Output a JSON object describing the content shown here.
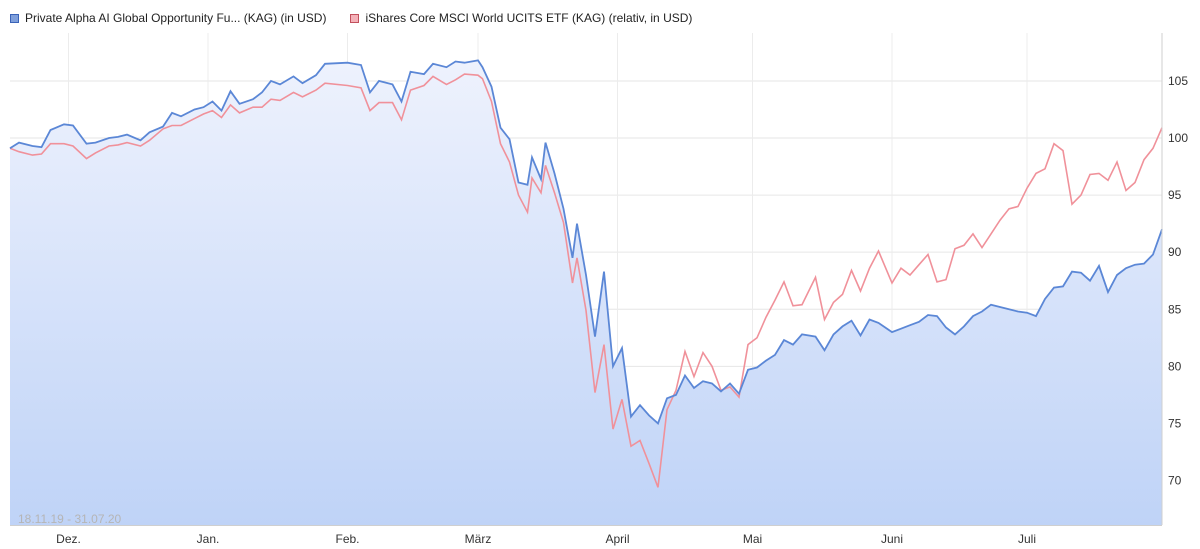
{
  "legend": {
    "series1": "Private Alpha AI Global Opportunity Fu... (KAG) (in USD)",
    "series2": "iShares Core MSCI World UCITS ETF (KAG) (relativ, in USD)"
  },
  "date_range": "18.11.19 - 31.07.20",
  "colors": {
    "series1": "#5b87d6",
    "series2": "#f0919a",
    "fill_top": "#eef2fd",
    "fill_bottom": "#bfd3f7"
  },
  "chart_data": {
    "type": "line",
    "x_start": "2019-11-18",
    "x_end": "2020-07-31",
    "x_ticks": [
      {
        "label": "Dez.",
        "date": "2019-12-01"
      },
      {
        "label": "Jan.",
        "date": "2020-01-01"
      },
      {
        "label": "Feb.",
        "date": "2020-02-01"
      },
      {
        "label": "März",
        "date": "2020-03-01"
      },
      {
        "label": "April",
        "date": "2020-04-01"
      },
      {
        "label": "Mai",
        "date": "2020-05-01"
      },
      {
        "label": "Juni",
        "date": "2020-06-01"
      },
      {
        "label": "Juli",
        "date": "2020-07-01"
      }
    ],
    "y_ticks": [
      70,
      75,
      80,
      85,
      90,
      95,
      100,
      105
    ],
    "ylim": [
      66.1,
      109.2
    ],
    "grid": true,
    "legend_position": "top-left",
    "series": [
      {
        "name": "Private Alpha AI Global Opportunity Fu... (KAG) (in USD)",
        "filled": true,
        "points": [
          [
            "2019-11-18",
            99.1
          ],
          [
            "2019-11-20",
            99.6
          ],
          [
            "2019-11-23",
            99.3
          ],
          [
            "2019-11-25",
            99.2
          ],
          [
            "2019-11-27",
            100.7
          ],
          [
            "2019-11-30",
            101.2
          ],
          [
            "2019-12-02",
            101.1
          ],
          [
            "2019-12-05",
            99.5
          ],
          [
            "2019-12-07",
            99.6
          ],
          [
            "2019-12-10",
            100.0
          ],
          [
            "2019-12-12",
            100.1
          ],
          [
            "2019-12-14",
            100.3
          ],
          [
            "2019-12-17",
            99.8
          ],
          [
            "2019-12-19",
            100.5
          ],
          [
            "2019-12-22",
            101.0
          ],
          [
            "2019-12-24",
            102.2
          ],
          [
            "2019-12-26",
            101.9
          ],
          [
            "2019-12-29",
            102.5
          ],
          [
            "2019-12-31",
            102.7
          ],
          [
            "2020-01-02",
            103.2
          ],
          [
            "2020-01-04",
            102.4
          ],
          [
            "2020-01-06",
            104.1
          ],
          [
            "2020-01-08",
            103.0
          ],
          [
            "2020-01-11",
            103.4
          ],
          [
            "2020-01-13",
            104.0
          ],
          [
            "2020-01-15",
            105.0
          ],
          [
            "2020-01-17",
            104.7
          ],
          [
            "2020-01-20",
            105.4
          ],
          [
            "2020-01-22",
            104.8
          ],
          [
            "2020-01-25",
            105.5
          ],
          [
            "2020-01-27",
            106.5
          ],
          [
            "2020-02-01",
            106.6
          ],
          [
            "2020-02-04",
            106.4
          ],
          [
            "2020-02-06",
            104.0
          ],
          [
            "2020-02-08",
            105.0
          ],
          [
            "2020-02-11",
            104.7
          ],
          [
            "2020-02-13",
            103.2
          ],
          [
            "2020-02-15",
            105.8
          ],
          [
            "2020-02-18",
            105.6
          ],
          [
            "2020-02-20",
            106.5
          ],
          [
            "2020-02-23",
            106.2
          ],
          [
            "2020-02-25",
            106.7
          ],
          [
            "2020-02-27",
            106.6
          ],
          [
            "2020-03-01",
            106.8
          ],
          [
            "2020-03-02",
            106.2
          ],
          [
            "2020-03-04",
            104.5
          ],
          [
            "2020-03-06",
            100.9
          ],
          [
            "2020-03-08",
            99.9
          ],
          [
            "2020-03-10",
            96.1
          ],
          [
            "2020-03-12",
            95.9
          ],
          [
            "2020-03-13",
            98.3
          ],
          [
            "2020-03-15",
            96.4
          ],
          [
            "2020-03-16",
            99.6
          ],
          [
            "2020-03-18",
            96.9
          ],
          [
            "2020-03-20",
            93.8
          ],
          [
            "2020-03-22",
            89.5
          ],
          [
            "2020-03-23",
            92.5
          ],
          [
            "2020-03-25",
            88.0
          ],
          [
            "2020-03-27",
            82.6
          ],
          [
            "2020-03-29",
            88.3
          ],
          [
            "2020-03-31",
            80.0
          ],
          [
            "2020-04-02",
            81.6
          ],
          [
            "2020-04-04",
            75.6
          ],
          [
            "2020-04-06",
            76.6
          ],
          [
            "2020-04-08",
            75.7
          ],
          [
            "2020-04-10",
            75.0
          ],
          [
            "2020-04-12",
            77.2
          ],
          [
            "2020-04-14",
            77.5
          ],
          [
            "2020-04-16",
            79.2
          ],
          [
            "2020-04-18",
            78.1
          ],
          [
            "2020-04-20",
            78.7
          ],
          [
            "2020-04-22",
            78.5
          ],
          [
            "2020-04-24",
            77.8
          ],
          [
            "2020-04-26",
            78.5
          ],
          [
            "2020-04-28",
            77.6
          ],
          [
            "2020-04-30",
            79.7
          ],
          [
            "2020-05-02",
            79.9
          ],
          [
            "2020-05-04",
            80.5
          ],
          [
            "2020-05-06",
            81.0
          ],
          [
            "2020-05-08",
            82.3
          ],
          [
            "2020-05-10",
            81.9
          ],
          [
            "2020-05-12",
            82.8
          ],
          [
            "2020-05-15",
            82.6
          ],
          [
            "2020-05-17",
            81.4
          ],
          [
            "2020-05-19",
            82.8
          ],
          [
            "2020-05-21",
            83.5
          ],
          [
            "2020-05-23",
            84.0
          ],
          [
            "2020-05-25",
            82.7
          ],
          [
            "2020-05-27",
            84.1
          ],
          [
            "2020-05-29",
            83.8
          ],
          [
            "2020-06-01",
            83.0
          ],
          [
            "2020-06-03",
            83.3
          ],
          [
            "2020-06-05",
            83.6
          ],
          [
            "2020-06-07",
            83.9
          ],
          [
            "2020-06-09",
            84.5
          ],
          [
            "2020-06-11",
            84.4
          ],
          [
            "2020-06-13",
            83.4
          ],
          [
            "2020-06-15",
            82.8
          ],
          [
            "2020-06-17",
            83.5
          ],
          [
            "2020-06-19",
            84.4
          ],
          [
            "2020-06-21",
            84.8
          ],
          [
            "2020-06-23",
            85.4
          ],
          [
            "2020-06-25",
            85.2
          ],
          [
            "2020-06-27",
            85.0
          ],
          [
            "2020-06-29",
            84.8
          ],
          [
            "2020-07-01",
            84.7
          ],
          [
            "2020-07-03",
            84.4
          ],
          [
            "2020-07-05",
            85.9
          ],
          [
            "2020-07-07",
            86.9
          ],
          [
            "2020-07-09",
            87.0
          ],
          [
            "2020-07-11",
            88.3
          ],
          [
            "2020-07-13",
            88.2
          ],
          [
            "2020-07-15",
            87.5
          ],
          [
            "2020-07-17",
            88.8
          ],
          [
            "2020-07-19",
            86.5
          ],
          [
            "2020-07-21",
            88.0
          ],
          [
            "2020-07-23",
            88.6
          ],
          [
            "2020-07-25",
            88.9
          ],
          [
            "2020-07-27",
            89.0
          ],
          [
            "2020-07-29",
            89.8
          ],
          [
            "2020-07-31",
            92.0
          ]
        ]
      },
      {
        "name": "iShares Core MSCI World UCITS ETF (KAG) (relativ, in USD)",
        "filled": false,
        "points": [
          [
            "2019-11-18",
            99.1
          ],
          [
            "2019-11-20",
            98.8
          ],
          [
            "2019-11-23",
            98.5
          ],
          [
            "2019-11-25",
            98.6
          ],
          [
            "2019-11-27",
            99.5
          ],
          [
            "2019-11-30",
            99.5
          ],
          [
            "2019-12-02",
            99.3
          ],
          [
            "2019-12-05",
            98.2
          ],
          [
            "2019-12-07",
            98.7
          ],
          [
            "2019-12-10",
            99.3
          ],
          [
            "2019-12-12",
            99.4
          ],
          [
            "2019-12-14",
            99.6
          ],
          [
            "2019-12-17",
            99.3
          ],
          [
            "2019-12-19",
            99.8
          ],
          [
            "2019-12-22",
            100.8
          ],
          [
            "2019-12-24",
            101.1
          ],
          [
            "2019-12-26",
            101.1
          ],
          [
            "2019-12-29",
            101.7
          ],
          [
            "2019-12-31",
            102.1
          ],
          [
            "2020-01-02",
            102.4
          ],
          [
            "2020-01-04",
            101.8
          ],
          [
            "2020-01-06",
            102.9
          ],
          [
            "2020-01-08",
            102.2
          ],
          [
            "2020-01-11",
            102.7
          ],
          [
            "2020-01-13",
            102.7
          ],
          [
            "2020-01-15",
            103.4
          ],
          [
            "2020-01-17",
            103.3
          ],
          [
            "2020-01-20",
            104.0
          ],
          [
            "2020-01-22",
            103.6
          ],
          [
            "2020-01-25",
            104.2
          ],
          [
            "2020-01-27",
            104.8
          ],
          [
            "2020-02-01",
            104.6
          ],
          [
            "2020-02-04",
            104.4
          ],
          [
            "2020-02-06",
            102.4
          ],
          [
            "2020-02-08",
            103.1
          ],
          [
            "2020-02-11",
            103.1
          ],
          [
            "2020-02-13",
            101.6
          ],
          [
            "2020-02-15",
            104.2
          ],
          [
            "2020-02-18",
            104.6
          ],
          [
            "2020-02-20",
            105.4
          ],
          [
            "2020-02-23",
            104.7
          ],
          [
            "2020-02-25",
            105.1
          ],
          [
            "2020-02-27",
            105.6
          ],
          [
            "2020-03-01",
            105.5
          ],
          [
            "2020-03-02",
            105.2
          ],
          [
            "2020-03-04",
            103.2
          ],
          [
            "2020-03-06",
            99.5
          ],
          [
            "2020-03-08",
            97.9
          ],
          [
            "2020-03-10",
            95.0
          ],
          [
            "2020-03-12",
            93.5
          ],
          [
            "2020-03-13",
            96.5
          ],
          [
            "2020-03-15",
            95.2
          ],
          [
            "2020-03-16",
            97.6
          ],
          [
            "2020-03-18",
            95.2
          ],
          [
            "2020-03-20",
            92.6
          ],
          [
            "2020-03-22",
            87.3
          ],
          [
            "2020-03-23",
            89.5
          ],
          [
            "2020-03-25",
            84.9
          ],
          [
            "2020-03-27",
            77.7
          ],
          [
            "2020-03-29",
            81.9
          ],
          [
            "2020-03-31",
            74.5
          ],
          [
            "2020-04-02",
            77.1
          ],
          [
            "2020-04-04",
            73.0
          ],
          [
            "2020-04-06",
            73.5
          ],
          [
            "2020-04-08",
            71.5
          ],
          [
            "2020-04-10",
            69.4
          ],
          [
            "2020-04-12",
            76.2
          ],
          [
            "2020-04-14",
            77.9
          ],
          [
            "2020-04-16",
            81.3
          ],
          [
            "2020-04-18",
            79.1
          ],
          [
            "2020-04-20",
            81.2
          ],
          [
            "2020-04-22",
            80.0
          ],
          [
            "2020-04-24",
            77.9
          ],
          [
            "2020-04-26",
            78.2
          ],
          [
            "2020-04-28",
            77.3
          ],
          [
            "2020-04-30",
            81.9
          ],
          [
            "2020-05-02",
            82.5
          ],
          [
            "2020-05-04",
            84.3
          ],
          [
            "2020-05-06",
            85.8
          ],
          [
            "2020-05-08",
            87.4
          ],
          [
            "2020-05-10",
            85.3
          ],
          [
            "2020-05-12",
            85.4
          ],
          [
            "2020-05-15",
            87.8
          ],
          [
            "2020-05-17",
            84.1
          ],
          [
            "2020-05-19",
            85.6
          ],
          [
            "2020-05-21",
            86.3
          ],
          [
            "2020-05-23",
            88.4
          ],
          [
            "2020-05-25",
            86.6
          ],
          [
            "2020-05-27",
            88.6
          ],
          [
            "2020-05-29",
            90.1
          ],
          [
            "2020-06-01",
            87.3
          ],
          [
            "2020-06-03",
            88.6
          ],
          [
            "2020-06-05",
            88.0
          ],
          [
            "2020-06-07",
            88.9
          ],
          [
            "2020-06-09",
            89.8
          ],
          [
            "2020-06-11",
            87.4
          ],
          [
            "2020-06-13",
            87.6
          ],
          [
            "2020-06-15",
            90.3
          ],
          [
            "2020-06-17",
            90.6
          ],
          [
            "2020-06-19",
            91.6
          ],
          [
            "2020-06-21",
            90.4
          ],
          [
            "2020-06-23",
            91.6
          ],
          [
            "2020-06-25",
            92.8
          ],
          [
            "2020-06-27",
            93.8
          ],
          [
            "2020-06-29",
            94.0
          ],
          [
            "2020-07-01",
            95.6
          ],
          [
            "2020-07-03",
            96.9
          ],
          [
            "2020-07-05",
            97.3
          ],
          [
            "2020-07-07",
            99.5
          ],
          [
            "2020-07-09",
            98.9
          ],
          [
            "2020-07-11",
            94.2
          ],
          [
            "2020-07-13",
            95.0
          ],
          [
            "2020-07-15",
            96.8
          ],
          [
            "2020-07-17",
            96.9
          ],
          [
            "2020-07-19",
            96.3
          ],
          [
            "2020-07-21",
            97.9
          ],
          [
            "2020-07-23",
            95.4
          ],
          [
            "2020-07-25",
            96.1
          ],
          [
            "2020-07-27",
            98.1
          ],
          [
            "2020-07-29",
            99.1
          ],
          [
            "2020-07-31",
            100.9
          ]
        ]
      }
    ]
  }
}
